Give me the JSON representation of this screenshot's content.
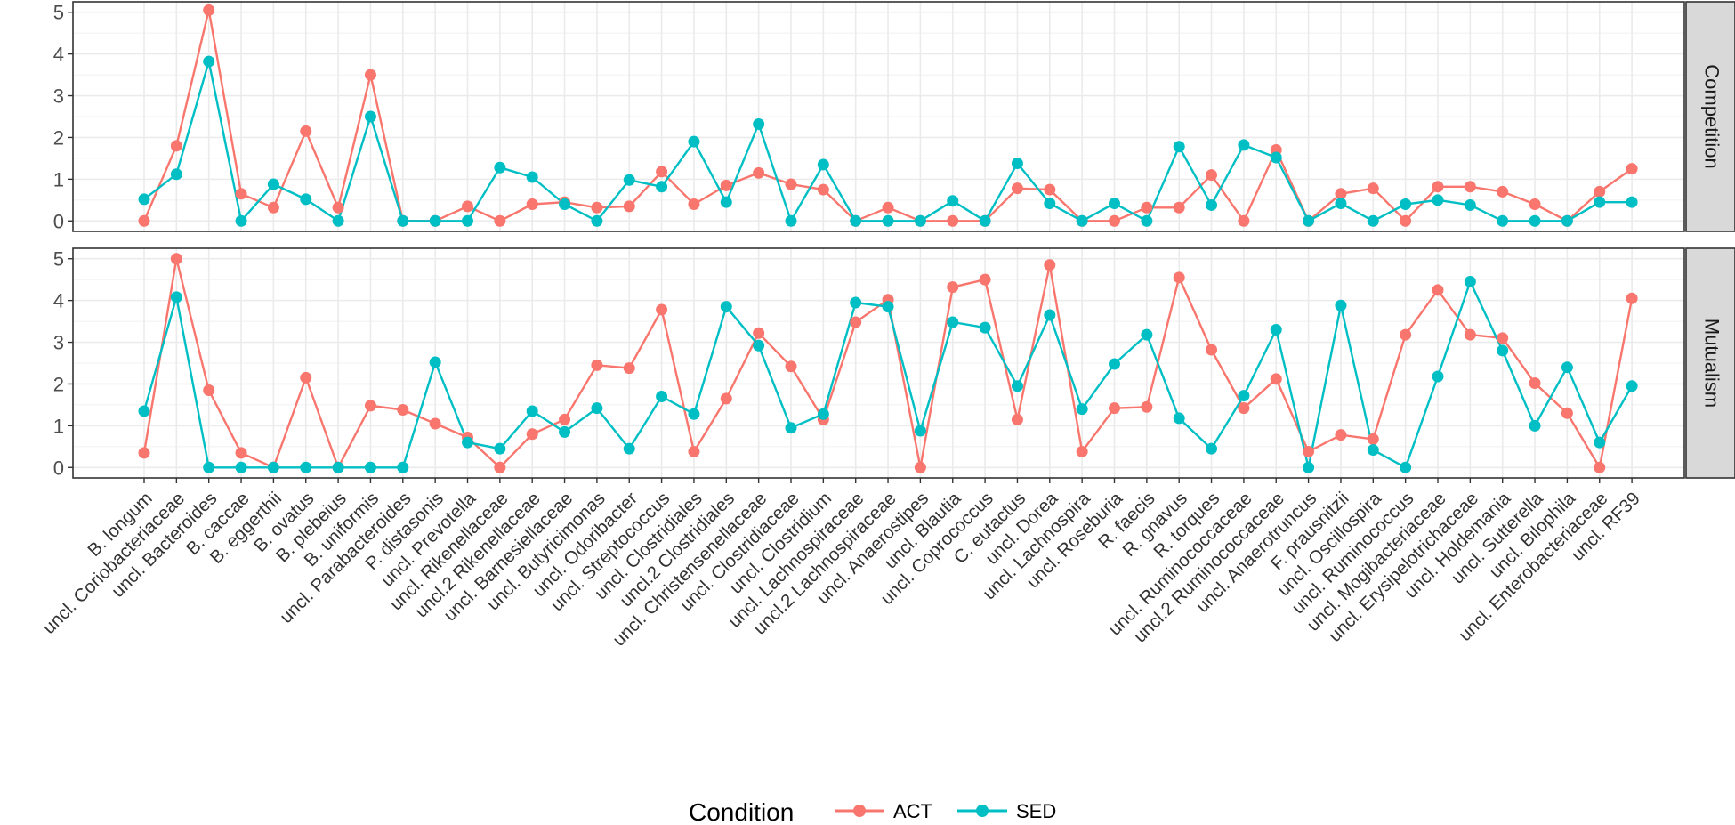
{
  "chart_data": {
    "type": "line",
    "facet_variable": "panel",
    "legend": {
      "title": "Condition",
      "position": "bottom"
    },
    "colors": {
      "ACT": "#F8766D",
      "SED": "#00BFC4"
    },
    "categories": [
      "B. longum",
      "uncl. Coriobacteriaceae",
      "uncl. Bacteroides",
      "B. caccae",
      "B. eggerthii",
      "B. ovatus",
      "B. plebeius",
      "B. uniformis",
      "uncl. Parabacteroides",
      "P. distasonis",
      "uncl. Prevotella",
      "uncl. Rikenellaceae",
      "uncl.2 Rikenellaceae",
      "uncl. Barnesiellaceae",
      "uncl. Butyricimonas",
      "uncl. Odoribacter",
      "uncl. Streptococcus",
      "uncl. Clostridiales",
      "uncl.2 Clostridiales",
      "uncl. Christensenellaceae",
      "uncl. Clostridiaceae",
      "uncl. Clostridium",
      "uncl. Lachnospiraceae",
      "uncl.2 Lachnospiraceae",
      "uncl. Anaerostipes",
      "uncl. Blautia",
      "uncl. Coprococcus",
      "C. eutactus",
      "uncl. Dorea",
      "uncl. Lachnospira",
      "uncl. Roseburia",
      "R. faecis",
      "R. gnavus",
      "R. torques",
      "uncl. Ruminococcaceae",
      "uncl.2 Ruminococcaceae",
      "uncl. Anaerotruncus",
      "F. prausnitzii",
      "uncl. Oscillospira",
      "uncl. Ruminococcus",
      "uncl. Mogibacteriaceae",
      "uncl. Erysipelotrichaceae",
      "uncl. Holdemania",
      "uncl. Sutterella",
      "uncl. Bilophila",
      "uncl. Enterobacteriaceae",
      "uncl. RF39"
    ],
    "panels": [
      {
        "label": "Competition",
        "ylim": [
          -0.25,
          5.25
        ],
        "yticks": [
          0,
          1,
          2,
          3,
          4,
          5
        ],
        "series": [
          {
            "name": "ACT",
            "values": [
              0,
              1.8,
              5.05,
              0.65,
              0.32,
              2.15,
              0.32,
              3.5,
              0,
              0,
              0.35,
              0,
              0.4,
              0.45,
              0.32,
              0.35,
              1.18,
              0.4,
              0.85,
              1.15,
              0.88,
              0.75,
              0,
              0.32,
              0,
              0,
              0,
              0.78,
              0.75,
              0,
              0,
              0.32,
              0.32,
              1.1,
              0,
              1.7,
              0,
              0.65,
              0.78,
              0,
              0.82,
              0.82,
              0.7,
              0.4,
              0,
              0.7,
              1.25
            ]
          },
          {
            "name": "SED",
            "values": [
              0.52,
              1.12,
              3.82,
              0,
              0.88,
              0.52,
              0,
              2.5,
              0,
              0,
              0,
              1.28,
              1.05,
              0.4,
              0,
              0.98,
              0.82,
              1.9,
              0.45,
              2.32,
              0,
              1.35,
              0,
              0,
              0,
              0.48,
              0,
              1.38,
              0.42,
              0,
              0.42,
              0,
              1.78,
              0.38,
              1.82,
              1.52,
              0,
              0.42,
              0,
              0.4,
              0.5,
              0.38,
              0,
              0,
              0,
              0.45,
              0.45
            ]
          }
        ]
      },
      {
        "label": "Mutualism",
        "ylim": [
          -0.25,
          5.25
        ],
        "yticks": [
          0,
          1,
          2,
          3,
          4,
          5
        ],
        "series": [
          {
            "name": "ACT",
            "values": [
              0.35,
              5,
              1.85,
              0.35,
              0,
              2.15,
              0,
              1.48,
              1.38,
              1.05,
              0.72,
              0,
              0.8,
              1.15,
              2.45,
              2.38,
              3.78,
              0.38,
              1.65,
              3.22,
              2.42,
              1.15,
              3.48,
              4.02,
              0,
              4.32,
              4.5,
              1.15,
              4.85,
              0.38,
              1.42,
              1.45,
              4.55,
              2.82,
              1.42,
              2.12,
              0.38,
              0.78,
              0.68,
              3.18,
              4.25,
              3.18,
              3.1,
              2.02,
              1.3,
              0,
              4.05
            ]
          },
          {
            "name": "SED",
            "values": [
              1.35,
              4.08,
              0,
              0,
              0,
              0,
              0,
              0,
              0,
              2.52,
              0.6,
              0.45,
              1.35,
              0.85,
              1.42,
              0.45,
              1.7,
              1.28,
              3.85,
              2.92,
              0.95,
              1.28,
              3.95,
              3.85,
              0.88,
              3.48,
              3.35,
              1.95,
              3.65,
              1.4,
              2.48,
              3.18,
              1.18,
              0.45,
              1.72,
              3.3,
              0,
              3.88,
              0.42,
              0,
              2.18,
              4.45,
              2.8,
              1,
              2.4,
              0.6,
              1.95
            ]
          }
        ]
      }
    ]
  }
}
